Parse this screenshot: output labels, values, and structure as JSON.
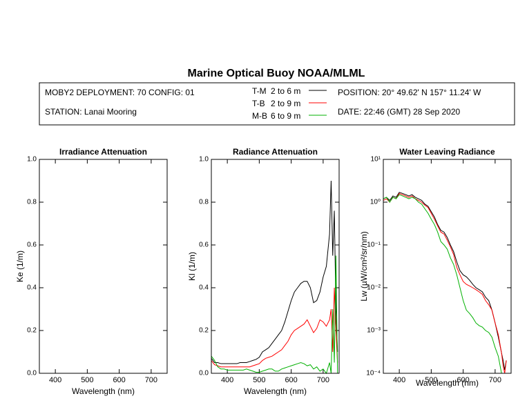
{
  "header": {
    "title": "Marine Optical Buoy NOAA/MLML",
    "deployment": "MOBY2 DEPLOYMENT: 70 CONFIG: 01",
    "station": "STATION: Lanai Mooring",
    "position": "POSITION: 20° 49.62' N   157° 11.24' W",
    "date": "DATE: 22:46 (GMT) 28 Sep 2020",
    "legend": [
      {
        "name": "T-M",
        "range": "2 to 6  m",
        "color": "#000000"
      },
      {
        "name": "T-B",
        "range": "2 to 9  m",
        "color": "#ff0000"
      },
      {
        "name": "M-B",
        "range": "6 to 9  m",
        "color": "#00b000"
      }
    ]
  },
  "chart_data": [
    {
      "type": "line",
      "title": "Irradiance Attenuation",
      "x_label": "Wavelength (nm)",
      "y_label": "Ke  (1/m)",
      "xlim": [
        350,
        750
      ],
      "xticks": [
        400,
        500,
        600,
        700
      ],
      "ylim": [
        0,
        1
      ],
      "yticks": [
        {
          "value": 0,
          "label": "0.0"
        },
        0.2,
        0.4,
        0.6,
        0.8,
        {
          "value": 1,
          "label": "1.0"
        }
      ]
    },
    {
      "type": "line",
      "title": "Radiance Attenuation",
      "x_label": "Wavelength (nm)",
      "y_label": "Kl  (1/m)",
      "xlim": [
        350,
        750
      ],
      "xticks": [
        400,
        500,
        600,
        700
      ],
      "ylim": [
        0,
        1
      ],
      "yticks": [
        {
          "value": 0,
          "label": "0.0"
        },
        0.2,
        0.4,
        0.6,
        0.8,
        {
          "value": 1,
          "label": "1.0"
        }
      ],
      "x": [
        350,
        360,
        370,
        380,
        390,
        400,
        410,
        420,
        430,
        440,
        450,
        460,
        470,
        480,
        490,
        500,
        510,
        520,
        530,
        540,
        550,
        560,
        570,
        580,
        590,
        600,
        610,
        620,
        630,
        640,
        650,
        660,
        670,
        680,
        690,
        700,
        710,
        720,
        725,
        730,
        735,
        740,
        745
      ],
      "series": [
        {
          "color": "#000000",
          "values": [
            0.07,
            0.05,
            0.05,
            0.045,
            0.045,
            0.045,
            0.045,
            0.045,
            0.045,
            0.05,
            0.05,
            0.05,
            0.055,
            0.06,
            0.065,
            0.075,
            0.1,
            0.11,
            0.12,
            0.14,
            0.16,
            0.18,
            0.2,
            0.24,
            0.29,
            0.34,
            0.38,
            0.4,
            0.42,
            0.43,
            0.43,
            0.4,
            0.33,
            0.34,
            0.38,
            0.45,
            0.5,
            0.65,
            0.9,
            0.55,
            0.76,
            0.3,
            0.1
          ]
        },
        {
          "color": "#ff0000",
          "values": [
            0.06,
            0.04,
            0.035,
            0.03,
            0.03,
            0.03,
            0.03,
            0.03,
            0.03,
            0.03,
            0.03,
            0.03,
            0.03,
            0.035,
            0.04,
            0.045,
            0.06,
            0.07,
            0.075,
            0.08,
            0.09,
            0.1,
            0.11,
            0.13,
            0.15,
            0.18,
            0.2,
            0.21,
            0.22,
            0.23,
            0.25,
            0.22,
            0.19,
            0.21,
            0.25,
            0.24,
            0.22,
            0.25,
            0.3,
            0.1,
            0.4,
            0.2,
            0.05
          ]
        },
        {
          "color": "#00b000",
          "values": [
            0.08,
            0.06,
            0.03,
            0.02,
            0.02,
            0.015,
            0.015,
            0.015,
            0.015,
            0.015,
            0.015,
            0.02,
            0.015,
            0.01,
            0.005,
            0.005,
            0.01,
            0.015,
            0.02,
            0.02,
            0.01,
            0.01,
            0.02,
            0.025,
            0.03,
            0.035,
            0.04,
            0.045,
            0.05,
            0.045,
            0.035,
            0.04,
            0.02,
            0.03,
            0.01,
            0.02,
            0,
            0.05,
            0,
            0.3,
            0.05,
            0.55,
            0
          ]
        }
      ]
    },
    {
      "type": "line",
      "title": "Water Leaving Radiance",
      "x_label": "Wavelength (nm)",
      "y_label": "Lw  (µW/cm²/sr/nm)",
      "xlim": [
        350,
        750
      ],
      "xticks": [
        400,
        500,
        600,
        700
      ],
      "log_y": true,
      "ylim": [
        0.0001,
        10
      ],
      "yticks": [
        {
          "value": 0.0001,
          "label": "10⁻⁴"
        },
        {
          "value": 0.001,
          "label": "10⁻³"
        },
        {
          "value": 0.01,
          "label": "10⁻²"
        },
        {
          "value": 0.1,
          "label": "10⁻¹"
        },
        {
          "value": 1,
          "label": "10⁰"
        },
        {
          "value": 10,
          "label": "10¹"
        }
      ],
      "x": [
        350,
        360,
        370,
        380,
        390,
        400,
        410,
        420,
        430,
        440,
        450,
        460,
        470,
        480,
        490,
        500,
        510,
        520,
        530,
        540,
        550,
        560,
        570,
        580,
        590,
        600,
        610,
        620,
        630,
        640,
        650,
        660,
        670,
        680,
        690,
        700,
        710,
        720,
        725,
        730,
        735,
        740,
        745
      ],
      "series": [
        {
          "color": "#000000",
          "values": [
            1.2,
            1.3,
            1.1,
            1.4,
            1.3,
            1.7,
            1.6,
            1.5,
            1.4,
            1.5,
            1.3,
            1.2,
            1.1,
            0.9,
            0.8,
            0.6,
            0.45,
            0.3,
            0.22,
            0.2,
            0.15,
            0.1,
            0.07,
            0.04,
            0.025,
            0.02,
            0.018,
            0.015,
            0.012,
            0.01,
            0.009,
            0.008,
            0.006,
            0.005,
            0.003,
            0.0015,
            0.0007,
            0.0003,
            0.0002,
            0.00012,
            0.0002,
            null,
            null
          ]
        },
        {
          "color": "#ff0000",
          "values": [
            1.1,
            1.2,
            1.0,
            1.3,
            1.2,
            1.6,
            1.5,
            1.4,
            1.3,
            1.4,
            1.2,
            1.1,
            1.0,
            0.85,
            0.75,
            0.55,
            0.4,
            0.28,
            0.2,
            0.18,
            0.13,
            0.09,
            0.06,
            0.03,
            0.02,
            0.014,
            0.012,
            0.011,
            0.01,
            0.009,
            0.008,
            0.007,
            0.005,
            0.004,
            0.003,
            0.0015,
            0.0008,
            0.0003,
            0.00015,
            0.0001,
            0.0002,
            null,
            null
          ]
        },
        {
          "color": "#00b000",
          "values": [
            1.2,
            1.3,
            1.0,
            1.3,
            1.2,
            1.5,
            1.4,
            1.3,
            1.2,
            1.3,
            1.2,
            1.0,
            0.9,
            0.7,
            0.55,
            0.4,
            0.3,
            0.2,
            0.12,
            0.1,
            0.08,
            0.05,
            0.035,
            0.02,
            0.01,
            0.005,
            0.003,
            0.0025,
            0.002,
            0.0015,
            0.0013,
            0.0012,
            0.001,
            0.0009,
            0.0007,
            0.0004,
            0.00025,
            0.0001,
            null,
            null,
            null,
            null,
            null
          ]
        }
      ]
    }
  ]
}
